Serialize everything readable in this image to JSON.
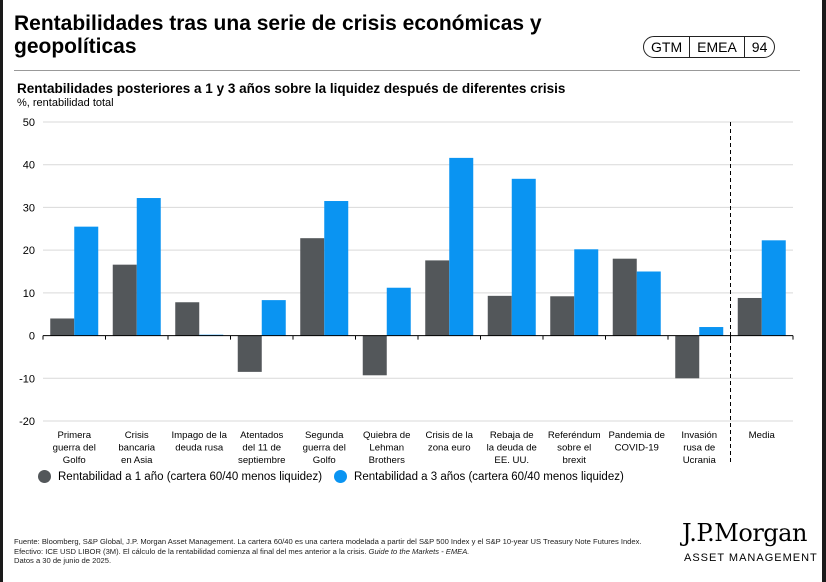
{
  "header": {
    "title": "Rentabilidades tras una serie de crisis económicas y geopolíticas",
    "badge": [
      "GTM",
      "EMEA",
      "94"
    ]
  },
  "chart_data": {
    "type": "bar",
    "title": "Rentabilidades posteriores a 1 y 3 años sobre la liquidez después de diferentes crisis",
    "ylabel": "%, rentabilidad total",
    "ylim": [
      -20,
      50
    ],
    "yticks": [
      50,
      40,
      30,
      20,
      10,
      0,
      -10,
      -20
    ],
    "grid": true,
    "categories": [
      [
        "Primera",
        "guerra del",
        "Golfo"
      ],
      [
        "Crisis",
        "bancaria",
        "en Asia"
      ],
      [
        "Impago de la",
        "deuda rusa"
      ],
      [
        "Atentados",
        "del 11 de",
        "septiembre"
      ],
      [
        "Segunda",
        "guerra del",
        "Golfo"
      ],
      [
        "Quiebra de",
        "Lehman",
        "Brothers"
      ],
      [
        "Crisis de la",
        "zona euro"
      ],
      [
        "Rebaja de",
        "la deuda de",
        "EE. UU."
      ],
      [
        "Referéndum",
        "sobre el",
        "brexit"
      ],
      [
        "Pandemia de",
        "COVID-19"
      ],
      [
        "Invasión",
        "rusa de",
        "Ucrania"
      ],
      [
        "Media"
      ]
    ],
    "series": [
      {
        "name": "Rentabilidad a 1 año (cartera 60/40 menos liquidez)",
        "color": "#53575a",
        "values": [
          4,
          16.6,
          7.8,
          -8.5,
          22.8,
          -9.3,
          17.6,
          9.3,
          9.2,
          18,
          -10,
          8.8
        ]
      },
      {
        "name": "Rentabilidad a 3 años (cartera 60/40 menos liquidez)",
        "color": "#0a94f2",
        "values": [
          25.5,
          32.2,
          0.2,
          8.3,
          31.5,
          11.2,
          41.6,
          36.7,
          20.2,
          15,
          2,
          22.3
        ]
      }
    ],
    "separator_before": 11,
    "legend_position": "bottom-left"
  },
  "footer": {
    "source": "Fuente: Bloomberg, S&P Global, J.P. Morgan Asset Management. La cartera 60/40 es una cartera modelada a partir del S&P 500 Index y el S&P 10-year US Treasury Note Futures Index. Efectivo: ICE USD LIBOR (3M). El cálculo de la rentabilidad comienza al final del mes anterior a la crisis.",
    "guide": "Guide to the Markets - EMEA.",
    "date": "Datos a 30 de junio de 2025.",
    "brand": "J.P.Morgan",
    "brand_sub": "ASSET MANAGEMENT"
  }
}
